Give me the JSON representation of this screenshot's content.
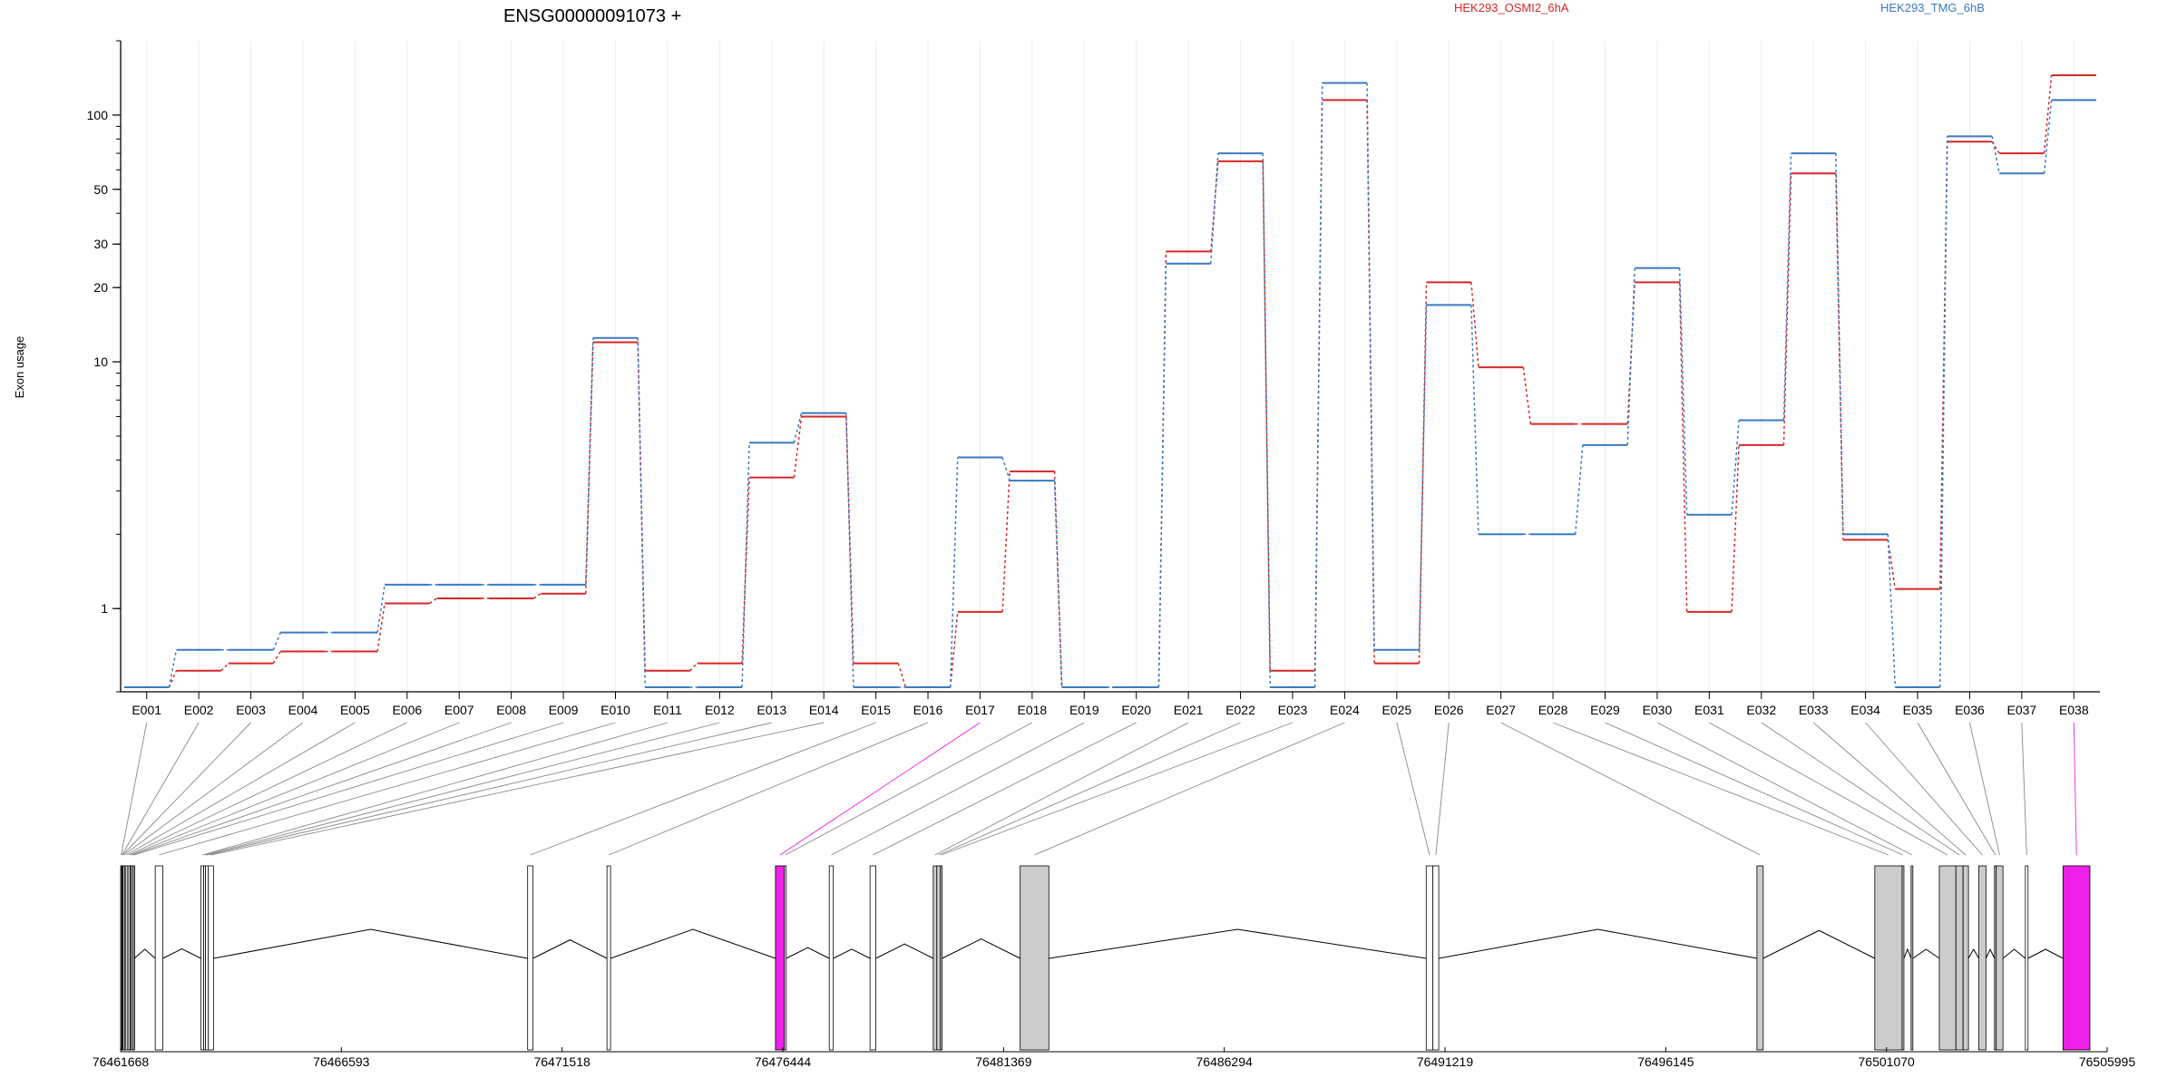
{
  "chart_data": {
    "type": "line",
    "title": "ENSG00000091073 +",
    "ylabel": "Exon usage",
    "xlabel": "",
    "yscale": "log",
    "ylim": [
      0.46,
      200
    ],
    "yticks": [
      1,
      10,
      20,
      30,
      50,
      100
    ],
    "grid": "vertical-light",
    "legend_placement": "top-right",
    "categories": [
      "E001",
      "E002",
      "E003",
      "E004",
      "E005",
      "E006",
      "E007",
      "E008",
      "E009",
      "E010",
      "E011",
      "E012",
      "E013",
      "E014",
      "E015",
      "E016",
      "E017",
      "E018",
      "E019",
      "E020",
      "E021",
      "E022",
      "E023",
      "E024",
      "E025",
      "E026",
      "E027",
      "E028",
      "E029",
      "E030",
      "E031",
      "E032",
      "E033",
      "E034",
      "E035",
      "E036",
      "E037",
      "E038"
    ],
    "series": [
      {
        "name": "HEK293_OSMI2_6hA",
        "color": "#d62728",
        "values": [
          0.48,
          0.56,
          0.6,
          0.67,
          0.67,
          1.05,
          1.1,
          1.1,
          1.15,
          12,
          0.56,
          0.6,
          3.4,
          6,
          0.6,
          0.48,
          0.97,
          3.6,
          0.48,
          0.48,
          28,
          65,
          0.56,
          115,
          0.6,
          21,
          9.5,
          5.6,
          5.6,
          21,
          0.97,
          4.6,
          58,
          1.9,
          1.2,
          78,
          70,
          145
        ]
      },
      {
        "name": "HEK293_TMG_6hB",
        "color": "#3a7abf",
        "values": [
          0.48,
          0.68,
          0.68,
          0.8,
          0.8,
          1.25,
          1.25,
          1.25,
          1.25,
          12.5,
          0.48,
          0.48,
          4.7,
          6.2,
          0.48,
          0.48,
          4.1,
          3.3,
          0.48,
          0.48,
          25,
          70,
          0.48,
          135,
          0.68,
          17,
          2.0,
          2.0,
          4.6,
          24,
          2.4,
          5.8,
          70,
          2.0,
          0.48,
          82,
          58,
          115
        ]
      }
    ],
    "genomic_axis": {
      "tick_labels": [
        "76461668",
        "76466593",
        "76471518",
        "76476444",
        "76481369",
        "76486294",
        "76491219",
        "76496145",
        "76501070",
        "76505995"
      ],
      "range": [
        76461668,
        76505995
      ]
    },
    "exon_models": [
      {
        "id": "E001",
        "start": 76461668,
        "end": 76461690,
        "highlight": false,
        "shade": "grey"
      },
      {
        "id": "E002",
        "start": 76461690,
        "end": 76461705,
        "highlight": false,
        "shade": "grey"
      },
      {
        "id": "E003",
        "start": 76461705,
        "end": 76461720,
        "highlight": false,
        "shade": "grey"
      },
      {
        "id": "E004",
        "start": 76461720,
        "end": 76461760,
        "highlight": false,
        "shade": "grey"
      },
      {
        "id": "E005",
        "start": 76461770,
        "end": 76461830,
        "highlight": false,
        "shade": "grey"
      },
      {
        "id": "E006",
        "start": 76461830,
        "end": 76461880,
        "highlight": false,
        "shade": "grey"
      },
      {
        "id": "E007",
        "start": 76461880,
        "end": 76461910,
        "highlight": false,
        "shade": "grey"
      },
      {
        "id": "E008",
        "start": 76461910,
        "end": 76461950,
        "highlight": false,
        "shade": "grey"
      },
      {
        "id": "E009",
        "start": 76461950,
        "end": 76461975,
        "highlight": false,
        "shade": "grey"
      },
      {
        "id": "E010",
        "start": 76462440,
        "end": 76462610,
        "highlight": false,
        "shade": "white"
      },
      {
        "id": "E011",
        "start": 76463460,
        "end": 76463520,
        "highlight": false,
        "shade": "white"
      },
      {
        "id": "E012",
        "start": 76463520,
        "end": 76463560,
        "highlight": false,
        "shade": "white"
      },
      {
        "id": "E013",
        "start": 76463560,
        "end": 76463620,
        "highlight": false,
        "shade": "white"
      },
      {
        "id": "E014",
        "start": 76463620,
        "end": 76463740,
        "highlight": false,
        "shade": "white"
      },
      {
        "id": "E015",
        "start": 76470750,
        "end": 76470870,
        "highlight": false,
        "shade": "white"
      },
      {
        "id": "E016",
        "start": 76472520,
        "end": 76472600,
        "highlight": false,
        "shade": "white"
      },
      {
        "id": "E017",
        "start": 76476280,
        "end": 76476480,
        "highlight": true,
        "shade": "magenta"
      },
      {
        "id": "E018",
        "start": 76476480,
        "end": 76476520,
        "highlight": false,
        "shade": "white"
      },
      {
        "id": "E019",
        "start": 76477480,
        "end": 76477570,
        "highlight": false,
        "shade": "white"
      },
      {
        "id": "E020",
        "start": 76478390,
        "end": 76478520,
        "highlight": false,
        "shade": "white"
      },
      {
        "id": "E021",
        "start": 76479800,
        "end": 76479880,
        "highlight": false,
        "shade": "grey"
      },
      {
        "id": "E022",
        "start": 76479880,
        "end": 76479960,
        "highlight": false,
        "shade": "grey"
      },
      {
        "id": "E023",
        "start": 76479960,
        "end": 76480000,
        "highlight": false,
        "shade": "grey"
      },
      {
        "id": "E024",
        "start": 76481740,
        "end": 76482380,
        "highlight": false,
        "shade": "grey"
      },
      {
        "id": "E025",
        "start": 76490800,
        "end": 76490950,
        "highlight": false,
        "shade": "white"
      },
      {
        "id": "E026",
        "start": 76490950,
        "end": 76491080,
        "highlight": false,
        "shade": "white"
      },
      {
        "id": "E027",
        "start": 76498180,
        "end": 76498320,
        "highlight": false,
        "shade": "grey"
      },
      {
        "id": "E028",
        "start": 76500810,
        "end": 76501420,
        "highlight": false,
        "shade": "grey"
      },
      {
        "id": "E029",
        "start": 76501420,
        "end": 76501460,
        "highlight": false,
        "shade": "grey"
      },
      {
        "id": "E030",
        "start": 76501620,
        "end": 76501660,
        "highlight": false,
        "shade": "grey"
      },
      {
        "id": "E031",
        "start": 76502250,
        "end": 76502620,
        "highlight": false,
        "shade": "grey"
      },
      {
        "id": "E032",
        "start": 76502620,
        "end": 76502780,
        "highlight": false,
        "shade": "grey"
      },
      {
        "id": "E033",
        "start": 76502780,
        "end": 76502900,
        "highlight": false,
        "shade": "grey"
      },
      {
        "id": "E034",
        "start": 76503130,
        "end": 76503290,
        "highlight": false,
        "shade": "grey"
      },
      {
        "id": "E035",
        "start": 76503480,
        "end": 76503520,
        "highlight": false,
        "shade": "grey"
      },
      {
        "id": "E036",
        "start": 76503520,
        "end": 76503670,
        "highlight": false,
        "shade": "grey"
      },
      {
        "id": "E037",
        "start": 76504170,
        "end": 76504230,
        "highlight": false,
        "shade": "white"
      },
      {
        "id": "E038",
        "start": 76505010,
        "end": 76505610,
        "highlight": true,
        "shade": "magenta"
      }
    ],
    "colors": {
      "highlight": "#ee1fe6",
      "exon_grey": "#cccccc",
      "connector": "#888888"
    }
  }
}
